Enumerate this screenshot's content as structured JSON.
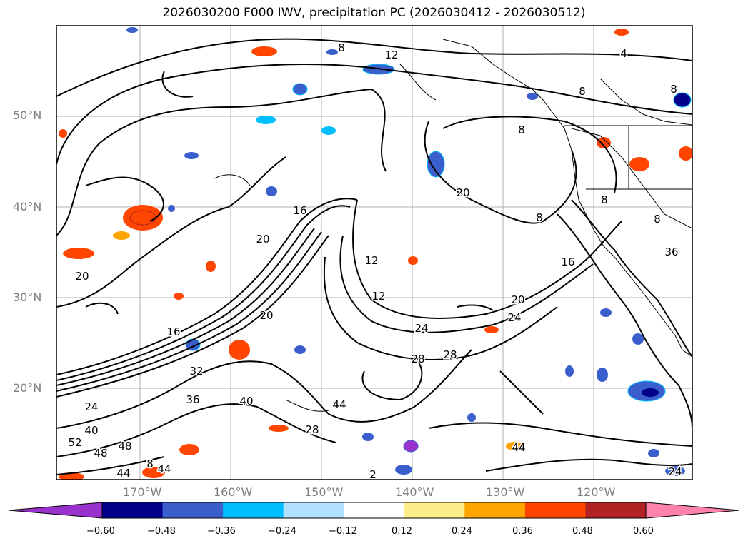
{
  "title": "2026030200 F000 IWV, precipitation PC (2026030412 - 2026030512)",
  "lat_labels": [
    "50°N",
    "40°N",
    "30°N",
    "20°N"
  ],
  "lon_labels": [
    "170°W",
    "160°W",
    "150°W",
    "140°W",
    "130°W",
    "120°W"
  ],
  "contour_labels": [
    "8",
    "12",
    "4",
    "8",
    "8",
    "8",
    "20",
    "20",
    "16",
    "20",
    "12",
    "12",
    "20",
    "16",
    "24",
    "28",
    "28",
    "24",
    "16",
    "20",
    "32",
    "36",
    "40",
    "44",
    "28",
    "24",
    "40",
    "52",
    "48",
    "48",
    "44",
    "44",
    "44",
    "24",
    "36",
    "8",
    "8",
    "8",
    "8",
    "2"
  ],
  "colorbar": {
    "ticks": [
      "−0.60",
      "−0.48",
      "−0.36",
      "−0.24",
      "−0.12",
      "0.12",
      "0.24",
      "0.36",
      "0.48",
      "0.60"
    ],
    "colors": [
      "#9932cc",
      "#00008b",
      "#3a5fcd",
      "#00bfff",
      "#b0e2ff",
      "#ffffff",
      "#ffec8b",
      "#ffa500",
      "#ff4500",
      "#b22222",
      "#ff82ab"
    ]
  }
}
